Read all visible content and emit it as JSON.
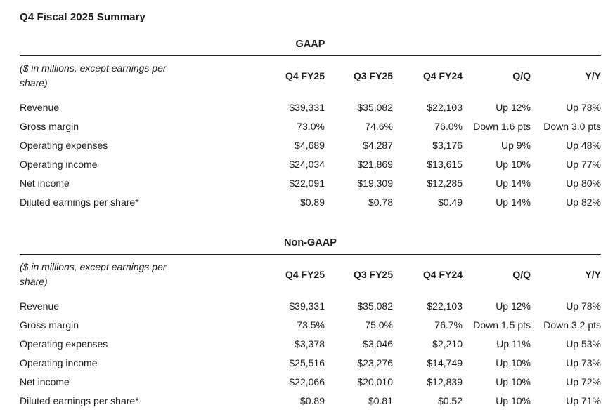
{
  "page_title": "Q4 Fiscal 2025 Summary",
  "measure_note": "($ in millions, except earnings per share)",
  "columns": [
    "Q4 FY25",
    "Q3 FY25",
    "Q4 FY24",
    "Q/Q",
    "Y/Y"
  ],
  "tables": [
    {
      "title": "GAAP",
      "rows": [
        {
          "label": "Revenue",
          "values": [
            "$39,331",
            "$35,082",
            "$22,103",
            "Up 12%",
            "Up 78%"
          ]
        },
        {
          "label": "Gross margin",
          "values": [
            "73.0%",
            "74.6%",
            "76.0%",
            "Down 1.6 pts",
            "Down 3.0 pts"
          ]
        },
        {
          "label": "Operating expenses",
          "values": [
            "$4,689",
            "$4,287",
            "$3,176",
            "Up 9%",
            "Up 48%"
          ]
        },
        {
          "label": "Operating income",
          "values": [
            "$24,034",
            "$21,869",
            "$13,615",
            "Up 10%",
            "Up 77%"
          ]
        },
        {
          "label": "Net income",
          "values": [
            "$22,091",
            "$19,309",
            "$12,285",
            "Up 14%",
            "Up 80%"
          ]
        },
        {
          "label": "Diluted earnings per share*",
          "values": [
            "$0.89",
            "$0.78",
            "$0.49",
            "Up 14%",
            "Up 82%"
          ]
        }
      ]
    },
    {
      "title": "Non-GAAP",
      "rows": [
        {
          "label": "Revenue",
          "values": [
            "$39,331",
            "$35,082",
            "$22,103",
            "Up 12%",
            "Up 78%"
          ]
        },
        {
          "label": "Gross margin",
          "values": [
            "73.5%",
            "75.0%",
            "76.7%",
            "Down 1.5 pts",
            "Down 3.2 pts"
          ]
        },
        {
          "label": "Operating expenses",
          "values": [
            "$3,378",
            "$3,046",
            "$2,210",
            "Up 11%",
            "Up 53%"
          ]
        },
        {
          "label": "Operating income",
          "values": [
            "$25,516",
            "$23,276",
            "$14,749",
            "Up 10%",
            "Up 73%"
          ]
        },
        {
          "label": "Net income",
          "values": [
            "$22,066",
            "$20,010",
            "$12,839",
            "Up 10%",
            "Up 72%"
          ]
        },
        {
          "label": "Diluted earnings per share*",
          "values": [
            "$0.89",
            "$0.81",
            "$0.52",
            "Up 10%",
            "Up 71%"
          ]
        }
      ]
    }
  ],
  "colors": {
    "text": "#1b1b1b",
    "rule": "#222222",
    "background": "#ffffff"
  }
}
